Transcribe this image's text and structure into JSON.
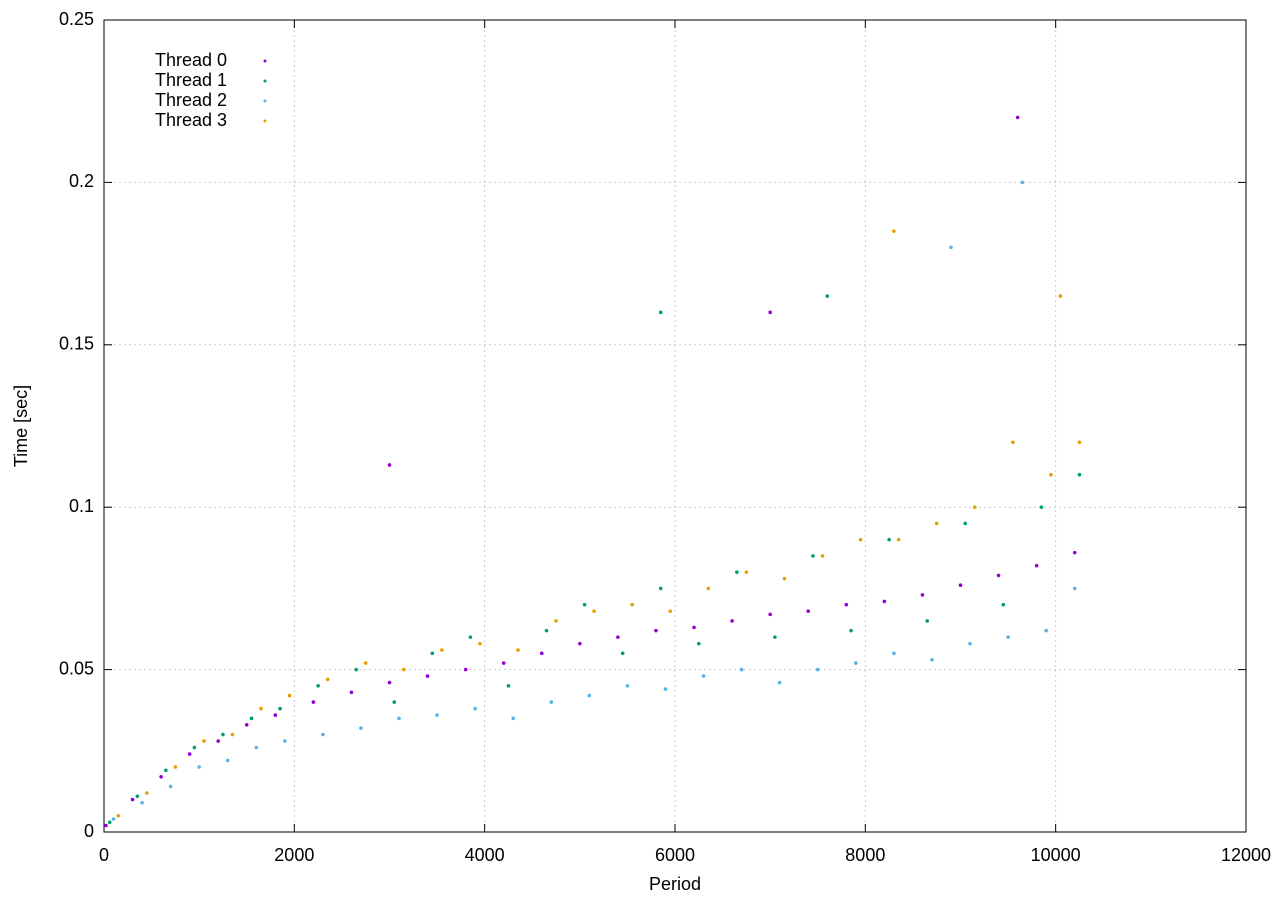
{
  "chart_data": {
    "type": "scatter",
    "x_label": "Period",
    "y_label": "Time [sec]",
    "xlim": [
      0,
      12000
    ],
    "ylim": [
      0,
      0.25
    ],
    "xticks": [
      0,
      2000,
      4000,
      6000,
      8000,
      10000,
      12000
    ],
    "yticks": [
      0,
      0.05,
      0.1,
      0.15,
      0.2,
      0.25
    ],
    "grid": true,
    "legend": "top-left",
    "series": [
      {
        "name": "Thread 0",
        "color": "#9400d3",
        "x": [
          20,
          300,
          600,
          900,
          1200,
          1500,
          1800,
          2200,
          2600,
          3000,
          3400,
          3800,
          4200,
          4600,
          5000,
          5400,
          5800,
          6200,
          6600,
          7000,
          7400,
          7800,
          8200,
          8600,
          9000,
          9400,
          9800,
          10200,
          3000,
          7000,
          9600
        ],
        "values": [
          0.002,
          0.01,
          0.017,
          0.024,
          0.028,
          0.033,
          0.036,
          0.04,
          0.043,
          0.046,
          0.048,
          0.05,
          0.052,
          0.055,
          0.058,
          0.06,
          0.062,
          0.063,
          0.065,
          0.067,
          0.068,
          0.07,
          0.071,
          0.073,
          0.076,
          0.079,
          0.082,
          0.086,
          0.113,
          0.16,
          0.22
        ]
      },
      {
        "name": "Thread 1",
        "color": "#009e73",
        "x": [
          60,
          350,
          650,
          950,
          1250,
          1550,
          1850,
          2250,
          2650,
          3050,
          3450,
          3850,
          4250,
          4650,
          5050,
          5450,
          5850,
          6250,
          6650,
          7050,
          7450,
          7850,
          8250,
          8650,
          9050,
          9450,
          9850,
          10250,
          5850,
          7600
        ],
        "values": [
          0.003,
          0.011,
          0.019,
          0.026,
          0.03,
          0.035,
          0.038,
          0.045,
          0.05,
          0.04,
          0.055,
          0.06,
          0.045,
          0.062,
          0.07,
          0.055,
          0.075,
          0.058,
          0.08,
          0.06,
          0.085,
          0.062,
          0.09,
          0.065,
          0.095,
          0.07,
          0.1,
          0.11,
          0.16,
          0.165
        ]
      },
      {
        "name": "Thread 2",
        "color": "#56b4e9",
        "x": [
          100,
          400,
          700,
          1000,
          1300,
          1600,
          1900,
          2300,
          2700,
          3100,
          3500,
          3900,
          4300,
          4700,
          5100,
          5500,
          5900,
          6300,
          6700,
          7100,
          7500,
          7900,
          8300,
          8700,
          9100,
          9500,
          9900,
          10200,
          8900,
          9650
        ],
        "values": [
          0.004,
          0.009,
          0.014,
          0.02,
          0.022,
          0.026,
          0.028,
          0.03,
          0.032,
          0.035,
          0.036,
          0.038,
          0.035,
          0.04,
          0.042,
          0.045,
          0.044,
          0.048,
          0.05,
          0.046,
          0.05,
          0.052,
          0.055,
          0.053,
          0.058,
          0.06,
          0.062,
          0.075,
          0.18,
          0.2
        ]
      },
      {
        "name": "Thread 3",
        "color": "#e69f00",
        "x": [
          150,
          450,
          750,
          1050,
          1350,
          1650,
          1950,
          2350,
          2750,
          3150,
          3550,
          3950,
          4350,
          4750,
          5150,
          5550,
          5950,
          6350,
          6750,
          7150,
          7550,
          7950,
          8350,
          8750,
          9150,
          9550,
          9950,
          10250,
          8300,
          10050
        ],
        "values": [
          0.005,
          0.012,
          0.02,
          0.028,
          0.03,
          0.038,
          0.042,
          0.047,
          0.052,
          0.05,
          0.056,
          0.058,
          0.056,
          0.065,
          0.068,
          0.07,
          0.068,
          0.075,
          0.08,
          0.078,
          0.085,
          0.09,
          0.09,
          0.095,
          0.1,
          0.12,
          0.11,
          0.12,
          0.185,
          0.165
        ]
      }
    ]
  }
}
